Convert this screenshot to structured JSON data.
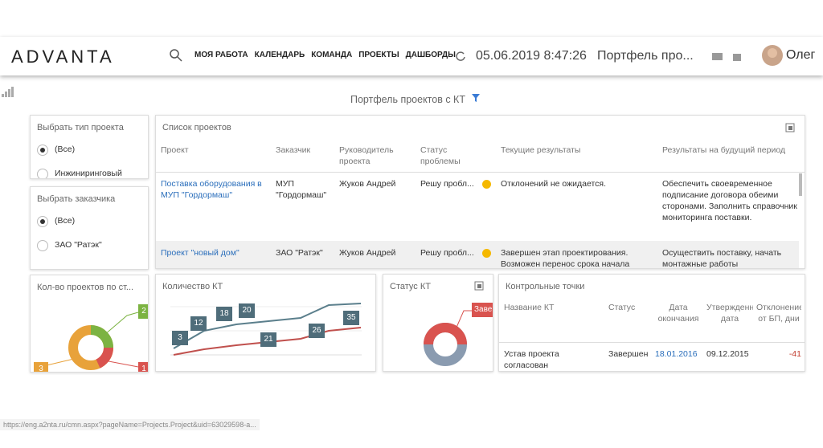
{
  "header": {
    "logo": "ADVANTA",
    "nav": [
      "МОЯ РАБОТА",
      "КАЛЕНДАРЬ",
      "КОМАНДА",
      "ПРОЕКТЫ",
      "ДАШБОРДЫ"
    ],
    "datetime": "05.06.2019 8:47:26",
    "page": "Портфель про...",
    "user": "Олег"
  },
  "page_title": "Портфель проектов с КТ",
  "filters": [
    {
      "title": "Выбрать тип проекта",
      "options": [
        "(Все)",
        "Инжиниринговый"
      ]
    },
    {
      "title": "Выбрать заказчика",
      "options": [
        "(Все)",
        "ЗАО \"Ратэк\""
      ]
    }
  ],
  "projects": {
    "title": "Список проектов",
    "columns": [
      "Проект",
      "Заказчик",
      "Руководитель проекта",
      "Статус проблемы",
      "Текущие результаты",
      "Результаты на будущий период"
    ],
    "rows": [
      [
        "Поставка оборудования в МУП \"Гордормаш\"",
        "МУП \"Гордормаш\"",
        "Жуков Андрей",
        "Решу пробл...",
        "Отклонений не ожидается.",
        "Обеспечить своевременное подписание договора обеими сторонами. Заполнить справочник мониторинга поставки."
      ],
      [
        "Проект \"новый дом\"",
        "ЗАО \"Ратэк\"",
        "Жуков Андрей",
        "Решу пробл...",
        "Завершен этап проектирования. Возможен перенос срока начала",
        "Осуществить поставку, начать монтажные работы"
      ]
    ]
  },
  "count_by_status": {
    "title": "Кол-во проектов по ст...",
    "labels": [
      "2",
      "3",
      "1"
    ]
  },
  "kt_count": {
    "title": "Количество КТ",
    "labels": [
      "3",
      "12",
      "18",
      "20",
      "21",
      "26",
      "35"
    ]
  },
  "status_kt": {
    "title": "Статус КТ",
    "labels": [
      "Завер"
    ]
  },
  "checkpoints": {
    "title": "Контрольные точки",
    "columns": [
      "Название КТ",
      "Статус",
      "Дата окончания",
      "Утвержденная дата",
      "Отклонение от БП, дни"
    ],
    "rows": [
      [
        "Устав проекта согласован",
        "Завершен",
        "18.01.2016",
        "09.12.2015",
        "-41"
      ]
    ]
  },
  "status_bar": "https://eng.a2nta.ru/cmn.aspx?pageName=Projects.Project&uid=63029598-a..."
}
